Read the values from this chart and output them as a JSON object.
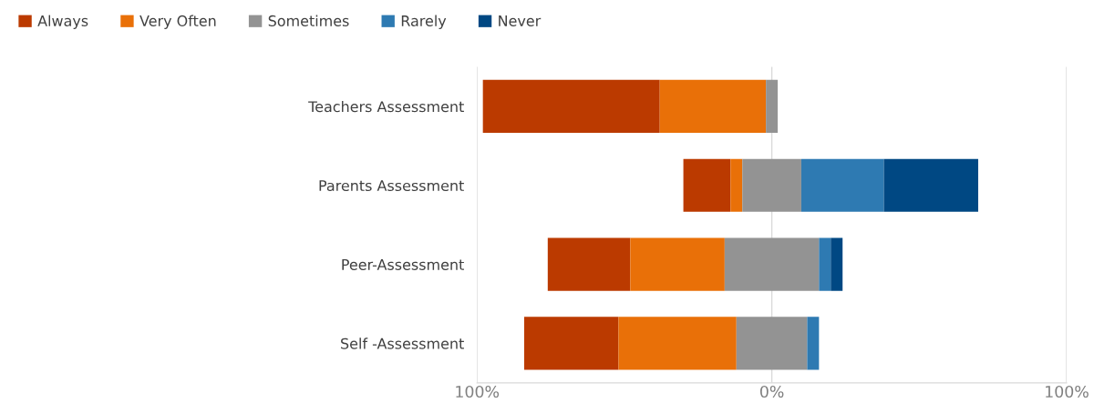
{
  "chart_data": {
    "type": "bar",
    "orientation": "horizontal",
    "categories": [
      "Teachers Assessment",
      "Parents Assessment",
      "Peer-Assessment",
      "Self -Assessment"
    ],
    "series": [
      {
        "name": "Always",
        "color": "#bb3a00",
        "base": [
          -98,
          -30,
          -76,
          -84
        ],
        "values": [
          60,
          16,
          28,
          32
        ]
      },
      {
        "name": "Very Often",
        "color": "#e97008",
        "base": [
          -38,
          -14,
          -48,
          -52
        ],
        "values": [
          36,
          4,
          32,
          40
        ]
      },
      {
        "name": "Sometimes",
        "color": "#939393",
        "base": [
          -2,
          -10,
          -16,
          -12
        ],
        "values": [
          4,
          20,
          32,
          24
        ]
      },
      {
        "name": "Rarely",
        "color": "#2e7ab2",
        "base": [
          null,
          10,
          16,
          12
        ],
        "values": [
          null,
          28,
          4,
          4
        ]
      },
      {
        "name": "Never",
        "color": "#004883",
        "base": [
          null,
          38,
          20,
          null
        ],
        "values": [
          null,
          32,
          4,
          null
        ]
      }
    ],
    "xlim": [
      -100,
      100
    ],
    "xticks": [
      {
        "value": -100,
        "label": "100%"
      },
      {
        "value": 0,
        "label": "0%"
      },
      {
        "value": 100,
        "label": "100%"
      }
    ],
    "grid": "x",
    "legend": "top left"
  }
}
